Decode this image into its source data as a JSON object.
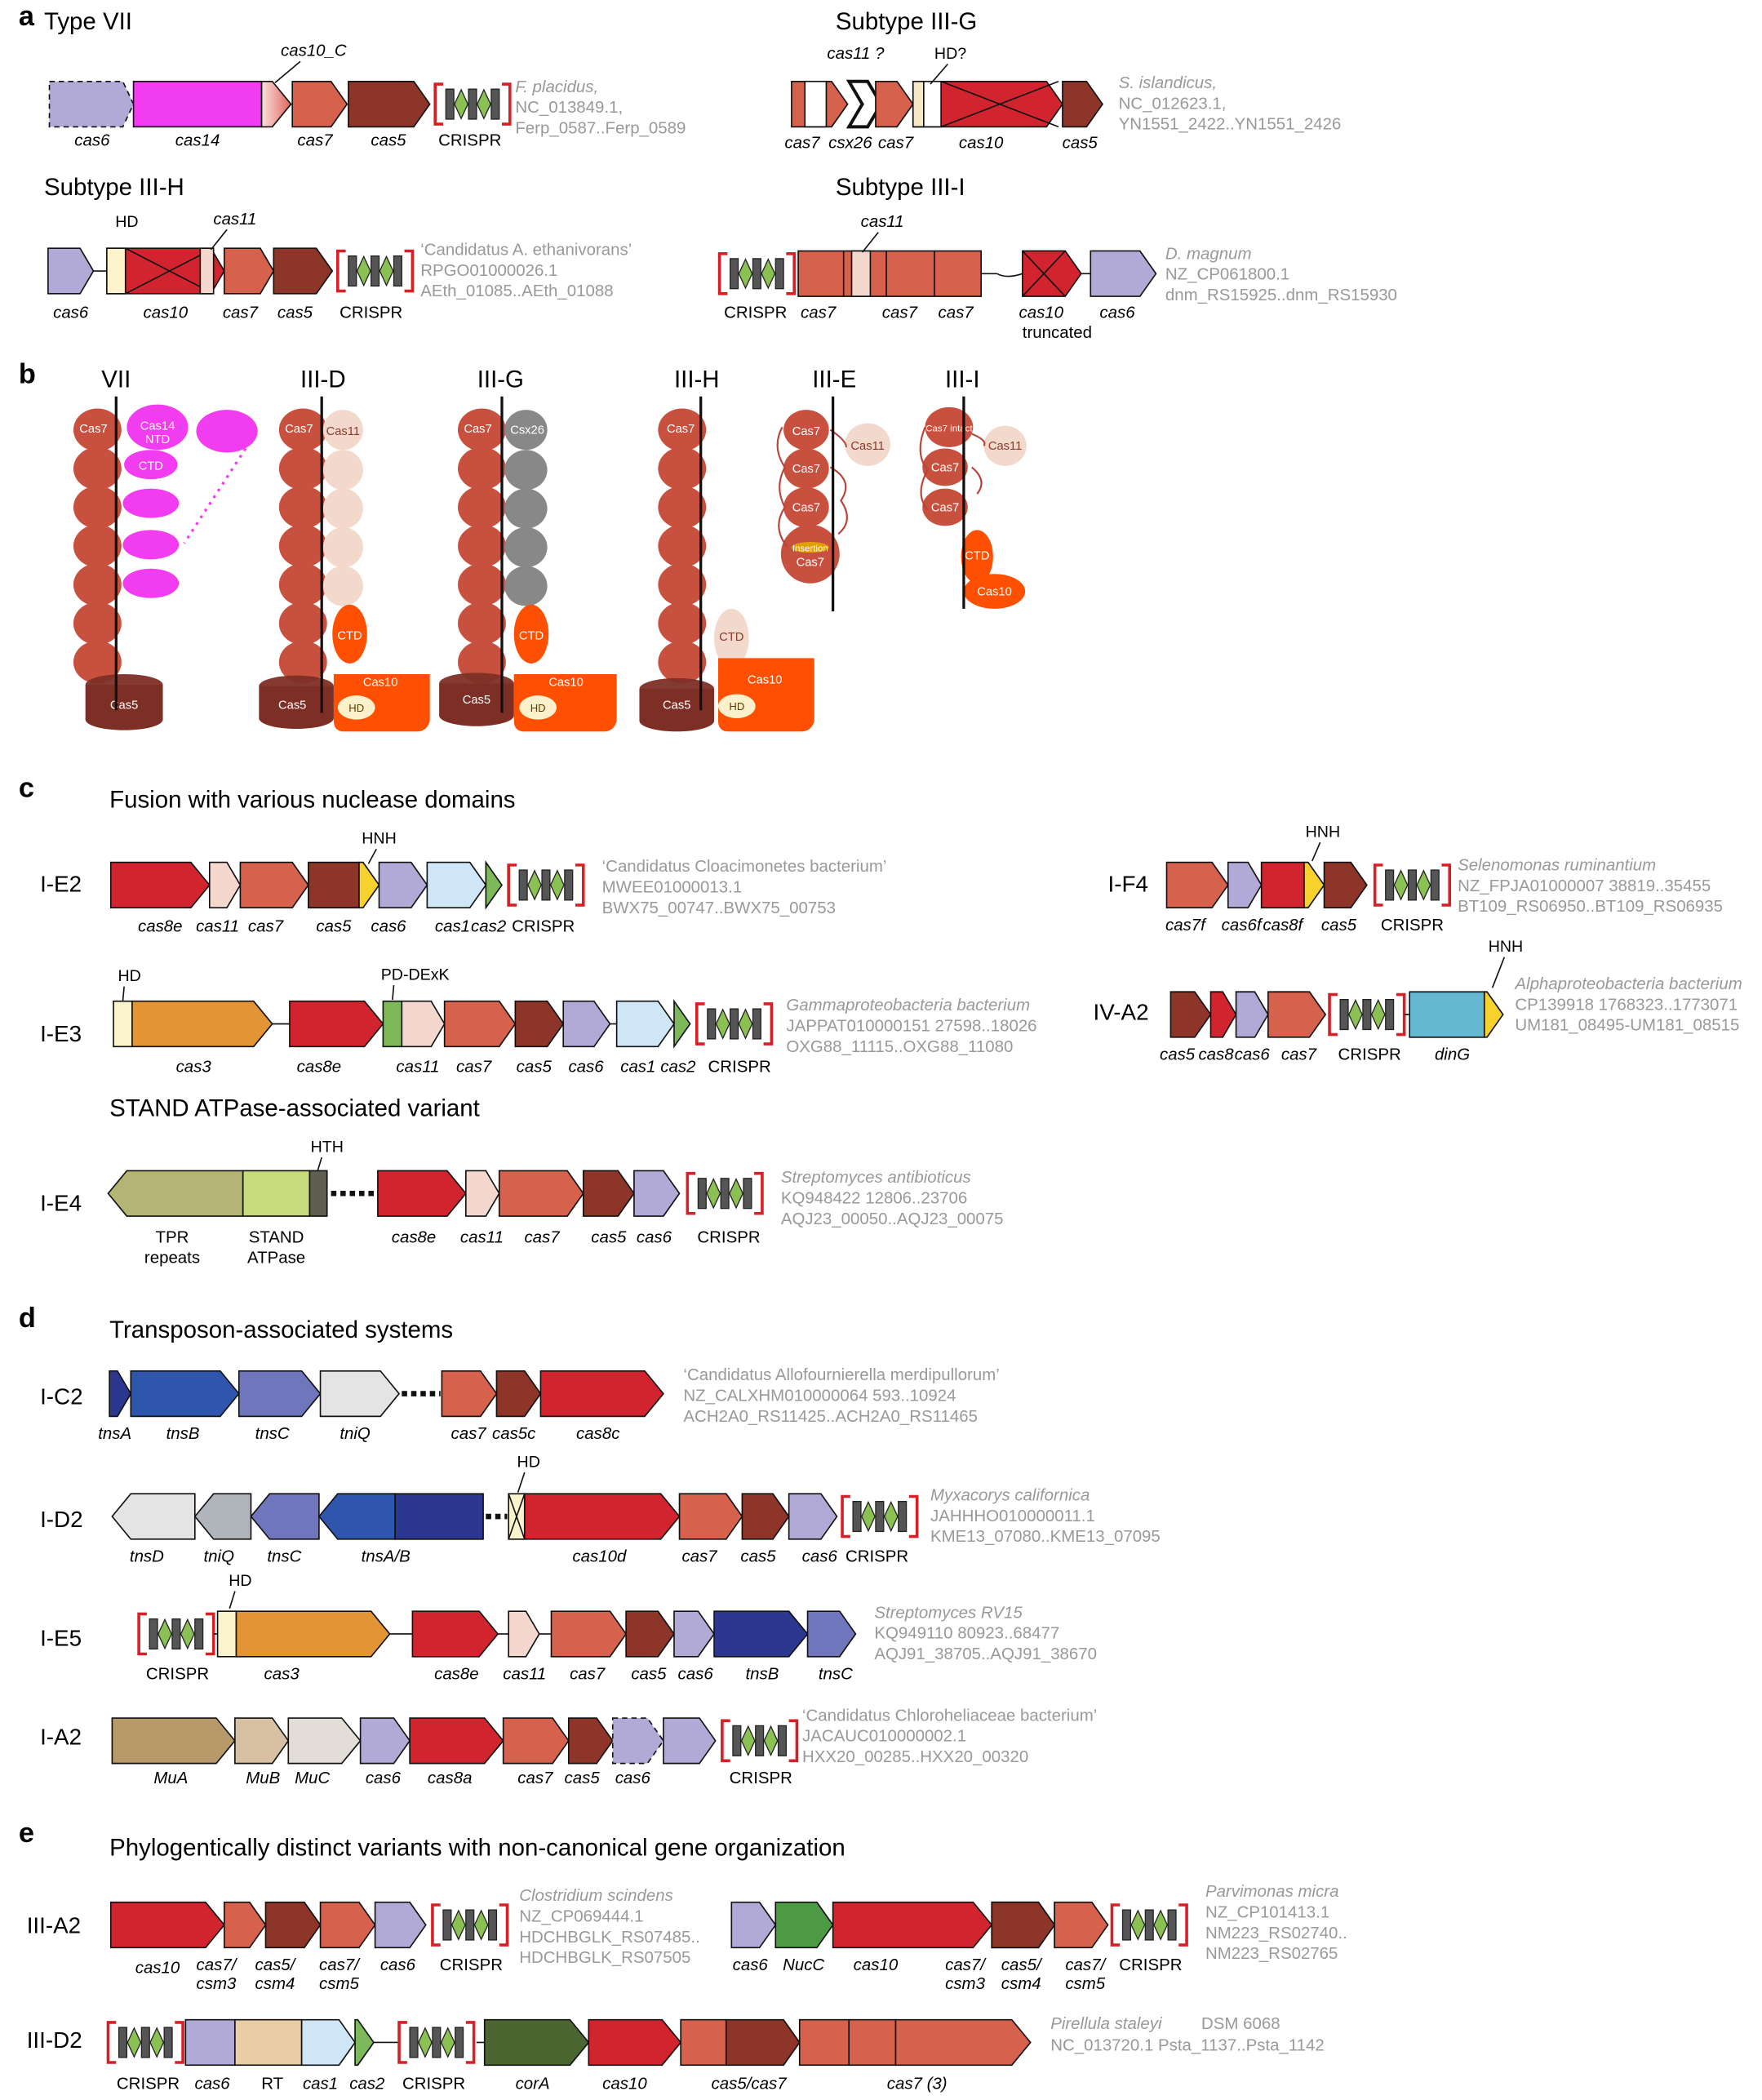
{
  "colors": {
    "cas7": "#d6614c",
    "cas5": "#8c3528",
    "cas10": "#d2242e",
    "cas6": "#b1aad6",
    "cas14": "#f23cf0",
    "cas11": "#f5d8cd",
    "cas1": "#cfe6f7",
    "cas2": "#7db85a",
    "cas3": "#e39434",
    "cas8": "#d2242e",
    "hnh": "#f7d12c",
    "dinG": "#65b8cf",
    "tnsA": "#2c3790",
    "tnsB": "#2f56ad",
    "tnsC": "#7076bb",
    "tniQ": "#e4e4e4",
    "MuA": "#b8996a",
    "MuB": "#d7c1a2",
    "MuC": "#e2ddd7",
    "NucC": "#4d9a45",
    "corA": "#4b6630",
    "RT": "#e8cda5",
    "orange": "#ff4f00",
    "tpr": "#b4b574",
    "stand": "#c7db7c",
    "grey": "#888888",
    "crisprRed": "#d62027",
    "crisprGreen": "#8bc053"
  },
  "panels": {
    "a": {
      "letter": "a",
      "typeVII": {
        "title": "Type VII",
        "dom": "cas10_C",
        "genes": [
          "cas6",
          "cas14",
          "cas7",
          "cas5",
          "CRISPR"
        ],
        "src": [
          "F. placidus,",
          "NC_013849.1,",
          "Ferp_0587..Ferp_0589"
        ]
      },
      "IIIG": {
        "title": "Subtype III-G",
        "dom1": "cas11 ?",
        "dom2": "HD?",
        "genes": [
          "cas7",
          "csx26",
          "cas7",
          "cas10",
          "cas5"
        ],
        "src": [
          "S. islandicus,",
          "NC_012623.1,",
          "YN1551_2422..YN1551_2426"
        ]
      },
      "IIIH": {
        "title": "Subtype III-H",
        "dom1": "HD",
        "dom2": "cas11",
        "genes": [
          "cas6",
          "cas10",
          "cas7",
          "cas5",
          "CRISPR"
        ],
        "src": [
          "‘Candidatus A. ethanivorans’",
          "RPGO01000026.1",
          "AEth_01085..AEth_01088"
        ]
      },
      "IIII": {
        "title": "Subtype III-I",
        "dom1": "cas11",
        "genes": [
          "CRISPR",
          "cas7",
          "cas7",
          "cas7",
          "cas10",
          "truncated",
          "cas6"
        ],
        "src": [
          "D. magnum",
          "NZ_CP061800.1",
          "dnm_RS15925..dnm_RS15930"
        ]
      }
    },
    "b": {
      "letter": "b",
      "titles": [
        "VII",
        "III-D",
        "III-G",
        "III-H",
        "III-E",
        "III-I"
      ],
      "labels": {
        "cas7": "Cas7",
        "cas14ntd": "Cas14",
        "ntd": "NTD",
        "ctd": "CTD",
        "cas5": "Cas5",
        "cas11": "Cas11",
        "csx26": "Csx26",
        "cas10": "Cas10",
        "hd": "HD",
        "insertion": "Insertion",
        "cas7intact": "Cas7 intact"
      }
    },
    "c": {
      "letter": "c",
      "heading1": "Fusion with various nuclease domains",
      "heading2": "STAND ATPase-associated variant",
      "IE2": {
        "name": "I-E2",
        "dom": "HNH",
        "genes": [
          "cas8e",
          "cas11",
          "cas7",
          "cas5",
          "cas6",
          "cas1",
          "cas2",
          "CRISPR"
        ],
        "src": [
          "‘Candidatus Cloacimonetes bacterium’",
          "MWEE01000013.1",
          "BWX75_00747..BWX75_00753"
        ]
      },
      "IE3": {
        "name": "I-E3",
        "dom1": "HD",
        "dom2": "PD-DExK",
        "genes": [
          "cas3",
          "cas8e",
          "cas11",
          "cas7",
          "cas5",
          "cas6",
          "cas1",
          "cas2",
          "CRISPR"
        ],
        "src": [
          "Gammaproteobacteria bacterium",
          "JAPPAT010000151 27598..18026",
          "OXG88_11115..OXG88_11080"
        ]
      },
      "IE4": {
        "name": "I-E4",
        "dom": "HTH",
        "genes": [
          "TPR",
          "repeats",
          "STAND",
          "ATPase",
          "cas8e",
          "cas11",
          "cas7",
          "cas5",
          "cas6",
          "CRISPR"
        ],
        "src": [
          "Streptomyces antibioticus",
          "KQ948422 12806..23706",
          "AQJ23_00050..AQJ23_00075"
        ]
      },
      "IF4": {
        "name": "I-F4",
        "dom": "HNH",
        "genes": [
          "cas7f",
          "cas6f",
          "cas8f",
          "cas5",
          "CRISPR"
        ],
        "src": [
          "Selenomonas ruminantium",
          "NZ_FPJA01000007 38819..35455",
          "BT109_RS06950..BT109_RS06935"
        ]
      },
      "IVA2": {
        "name": "IV-A2",
        "dom": "HNH",
        "genes": [
          "cas5",
          "cas8",
          "cas6",
          "cas7",
          "CRISPR",
          "dinG"
        ],
        "src": [
          "Alphaproteobacteria bacterium",
          "CP139918 1768323..1773071",
          "UM181_08495-UM181_08515"
        ]
      }
    },
    "d": {
      "letter": "d",
      "heading": "Transposon-associated systems",
      "IC2": {
        "name": "I-C2",
        "genes": [
          "tnsA",
          "tnsB",
          "tnsC",
          "tniQ",
          "cas7",
          "cas5c",
          "cas8c"
        ],
        "src": [
          "‘Candidatus Allofournierella merdipullorum’",
          "NZ_CALXHM010000064 593..10924",
          "ACH2A0_RS11425..ACH2A0_RS11465"
        ]
      },
      "ID2": {
        "name": "I-D2",
        "dom": "HD",
        "genes": [
          "tnsD",
          "tniQ",
          "tnsC",
          "tnsA/B",
          "cas10d",
          "cas7",
          "cas5",
          "cas6",
          "CRISPR"
        ],
        "src": [
          "Myxacorys californica",
          "JAHHHO010000011.1",
          "KME13_07080..KME13_07095"
        ]
      },
      "IE5": {
        "name": "I-E5",
        "dom": "HD",
        "genes": [
          "CRISPR",
          "cas3",
          "cas8e",
          "cas11",
          "cas7",
          "cas5",
          "cas6",
          "tnsB",
          "tnsC"
        ],
        "src": [
          "Streptomyces RV15",
          "KQ949110 80923..68477",
          "AQJ91_38705..AQJ91_38670"
        ]
      },
      "IA2": {
        "name": "I-A2",
        "genes": [
          "MuA",
          "MuB",
          "MuC",
          "cas6",
          "cas8a",
          "cas7",
          "cas5",
          "cas6",
          "CRISPR"
        ],
        "src": [
          "‘Candidatus Chloroheliaceae bacterium’",
          "JACAUC010000002.1",
          "HXX20_00285..HXX20_00320"
        ]
      }
    },
    "e": {
      "letter": "e",
      "heading": "Phylogentically distinct variants with non-canonical gene organization",
      "IIIA2": {
        "name": "III-A2",
        "genes": [
          "cas10",
          "cas7/",
          "csm3",
          "cas5/",
          "csm4",
          "cas7/",
          "csm5",
          "cas6",
          "CRISPR"
        ],
        "src": [
          "Clostridium scindens",
          "NZ_CP069444.1",
          "HDCHBGLK_RS07485..",
          "HDCHBGLK_RS07505"
        ],
        "genes2": [
          "cas6",
          "NucC",
          "cas10",
          "cas7/",
          "csm3",
          "cas5/",
          "csm4",
          "cas7/",
          "csm5",
          "CRISPR"
        ],
        "src2": [
          "Parvimonas micra",
          "NZ_CP101413.1",
          "NM223_RS02740..",
          "NM223_RS02765"
        ]
      },
      "IIID2": {
        "name": "III-D2",
        "genes": [
          "CRISPR",
          "cas6",
          "RT",
          "cas1",
          "cas2",
          "CRISPR",
          "corA",
          "cas10",
          "cas5/cas7",
          "cas7 (3)"
        ],
        "src": [
          "Pirellula staleyi",
          "DSM 6068",
          "NC_013720.1 Psta_1137..Psta_1142"
        ]
      }
    }
  }
}
